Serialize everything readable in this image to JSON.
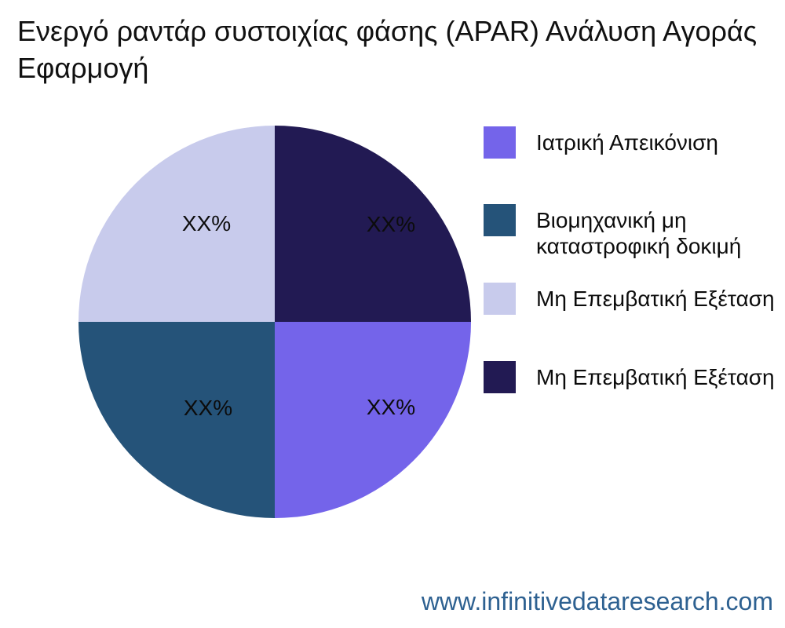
{
  "title": {
    "line1": "Ενεργό ραντάρ συστοιχίας φάσης (APAR) Ανάλυση Αγοράς",
    "line2": "Εφαρμογή"
  },
  "footer": {
    "url": "www.infinitivedataresearch.com",
    "color": "#2E6191"
  },
  "colors": {
    "background": "#ffffff",
    "text": "#111111"
  },
  "chart_data": {
    "type": "pie",
    "title": "Ενεργό ραντάρ συστοιχίας φάσης (APAR) Ανάλυση Αγοράς Εφαρμογή",
    "legend_position": "right",
    "start_angle_deg": 0,
    "direction": "clockwise",
    "slices": [
      {
        "label": "Ιατρική Απεικόνιση",
        "value": 25,
        "value_label": "XX%",
        "color": "#7464EA",
        "position": "bottom-right"
      },
      {
        "label": "Βιομηχανική μη\nκαταστροφική δοκιμή",
        "value": 25,
        "value_label": "XX%",
        "color": "#255379",
        "position": "bottom-left"
      },
      {
        "label": "Μη Επεμβατική Εξέταση",
        "value": 25,
        "value_label": "XX%",
        "color": "#C8CBEC",
        "position": "top-left"
      },
      {
        "label": "Μη Επεμβατική Εξέταση",
        "value": 25,
        "value_label": "XX%",
        "color": "#221A53",
        "position": "top-right"
      }
    ]
  }
}
